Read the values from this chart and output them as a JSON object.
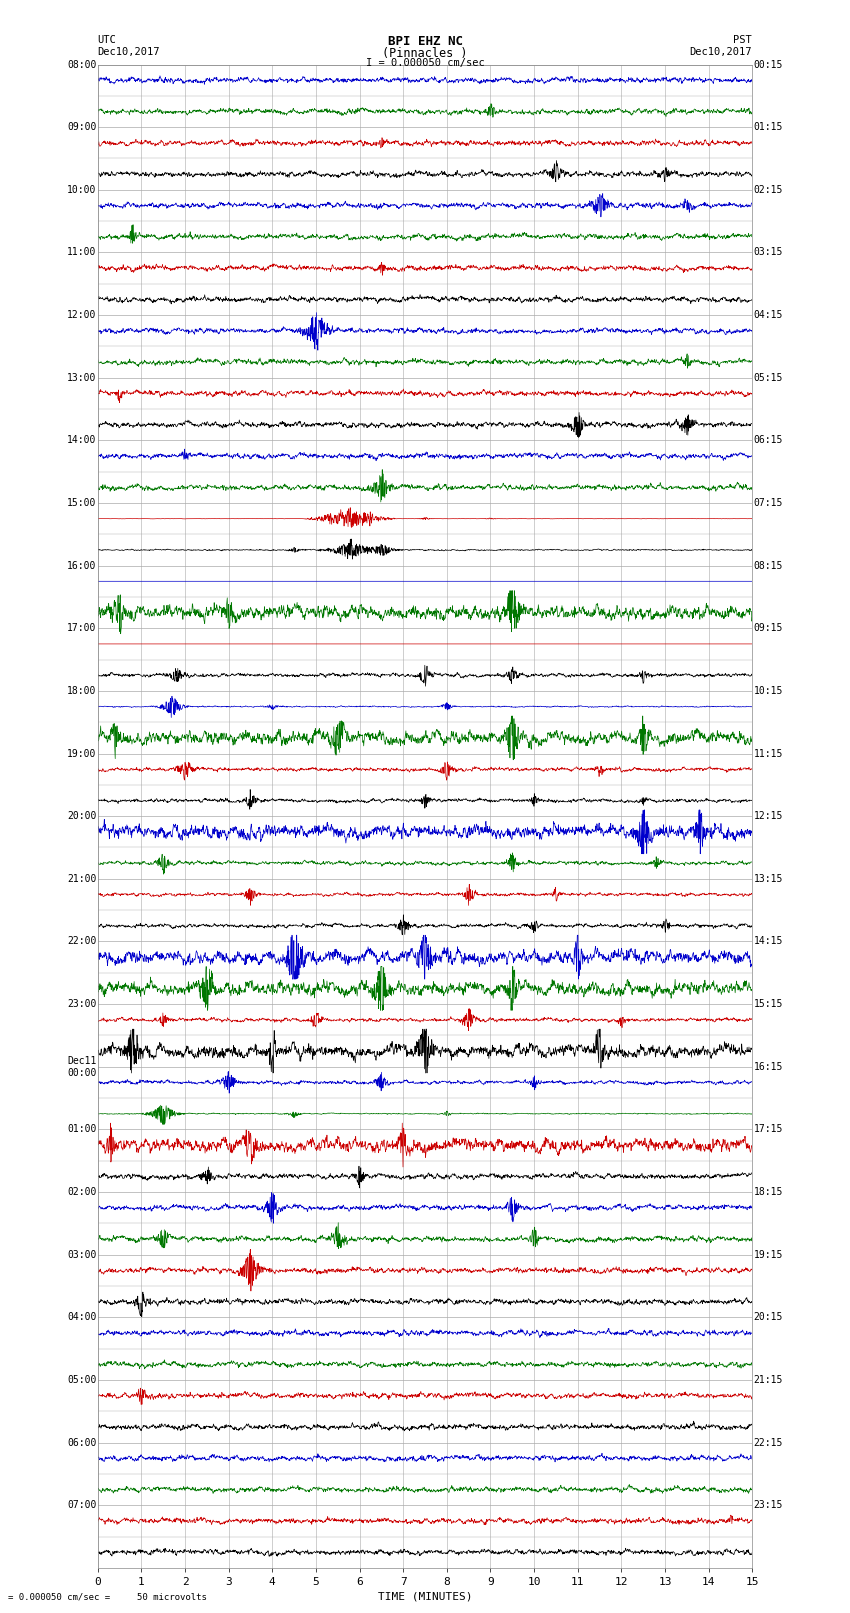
{
  "title_line1": "BPI EHZ NC",
  "title_line2": "(Pinnacles )",
  "scale_text": "I = 0.000050 cm/sec",
  "bottom_scale_text": "= 0.000050 cm/sec =     50 microvolts",
  "xlabel": "TIME (MINUTES)",
  "xmin": 0,
  "xmax": 15,
  "xticks": [
    0,
    1,
    2,
    3,
    4,
    5,
    6,
    7,
    8,
    9,
    10,
    11,
    12,
    13,
    14,
    15
  ],
  "num_traces": 48,
  "trace_colors_cycle": [
    "#0000cc",
    "#007700",
    "#cc0000",
    "#000000"
  ],
  "utc_labels": [
    "08:00",
    "",
    "09:00",
    "",
    "10:00",
    "",
    "11:00",
    "",
    "12:00",
    "",
    "13:00",
    "",
    "14:00",
    "",
    "15:00",
    "",
    "16:00",
    "",
    "17:00",
    "",
    "18:00",
    "",
    "19:00",
    "",
    "20:00",
    "",
    "21:00",
    "",
    "22:00",
    "",
    "23:00",
    "",
    "Dec11\n00:00",
    "",
    "01:00",
    "",
    "02:00",
    "",
    "03:00",
    "",
    "04:00",
    "",
    "05:00",
    "",
    "06:00",
    "",
    "07:00",
    ""
  ],
  "pst_labels": [
    "00:15",
    "",
    "01:15",
    "",
    "02:15",
    "",
    "03:15",
    "",
    "04:15",
    "",
    "05:15",
    "",
    "06:15",
    "",
    "07:15",
    "",
    "08:15",
    "",
    "09:15",
    "",
    "10:15",
    "",
    "11:15",
    "",
    "12:15",
    "",
    "13:15",
    "",
    "14:15",
    "",
    "15:15",
    "",
    "16:15",
    "",
    "17:15",
    "",
    "18:15",
    "",
    "19:15",
    "",
    "20:15",
    "",
    "21:15",
    "",
    "22:15",
    "",
    "23:15",
    ""
  ],
  "background_color": "#ffffff",
  "grid_color": "#aaaaaa",
  "seed": 12345
}
